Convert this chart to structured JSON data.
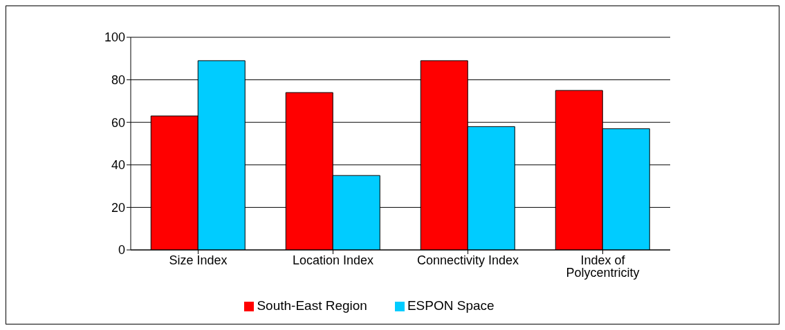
{
  "chart_data": {
    "type": "bar",
    "categories": [
      "Size Index",
      "Location Index",
      "Connectivity Index",
      "Index of Polycentricity"
    ],
    "series": [
      {
        "name": "South-East Region",
        "color": "#ff0000",
        "values": [
          63,
          74,
          89,
          75
        ]
      },
      {
        "name": "ESPON Space",
        "color": "#00ccff",
        "values": [
          89,
          35,
          58,
          57
        ]
      }
    ],
    "ylim": [
      0,
      100
    ],
    "yticks": [
      0,
      20,
      40,
      60,
      80,
      100
    ],
    "grid": "y",
    "legend": "bottom"
  }
}
